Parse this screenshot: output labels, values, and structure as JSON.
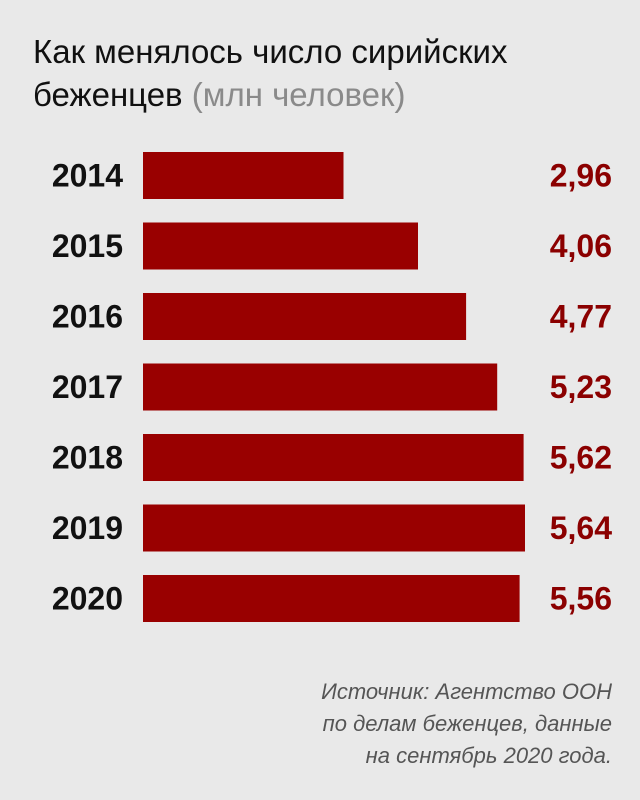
{
  "title": {
    "main": "Как менялось число сирийских беженцев",
    "unit": "(млн человек)"
  },
  "chart_data": {
    "type": "bar",
    "orientation": "horizontal",
    "categories": [
      "2014",
      "2015",
      "2016",
      "2017",
      "2018",
      "2019",
      "2020"
    ],
    "values": [
      2.96,
      4.06,
      4.77,
      5.23,
      5.62,
      5.64,
      5.56
    ],
    "value_labels": [
      "2,96",
      "4,06",
      "4,77",
      "5,23",
      "5,62",
      "5,64",
      "5,56"
    ],
    "xlim": [
      0,
      5.64
    ],
    "grid": false,
    "bar_color": "#990000",
    "value_color": "#8b0000"
  },
  "source": {
    "line1": "Источник: Агентство ООН",
    "line2": "по делам беженцев, данные",
    "line3": "на сентябрь 2020 года."
  },
  "colors": {
    "background": "#e9e9e9",
    "bar": "#990000",
    "value_text": "#8b0000"
  }
}
